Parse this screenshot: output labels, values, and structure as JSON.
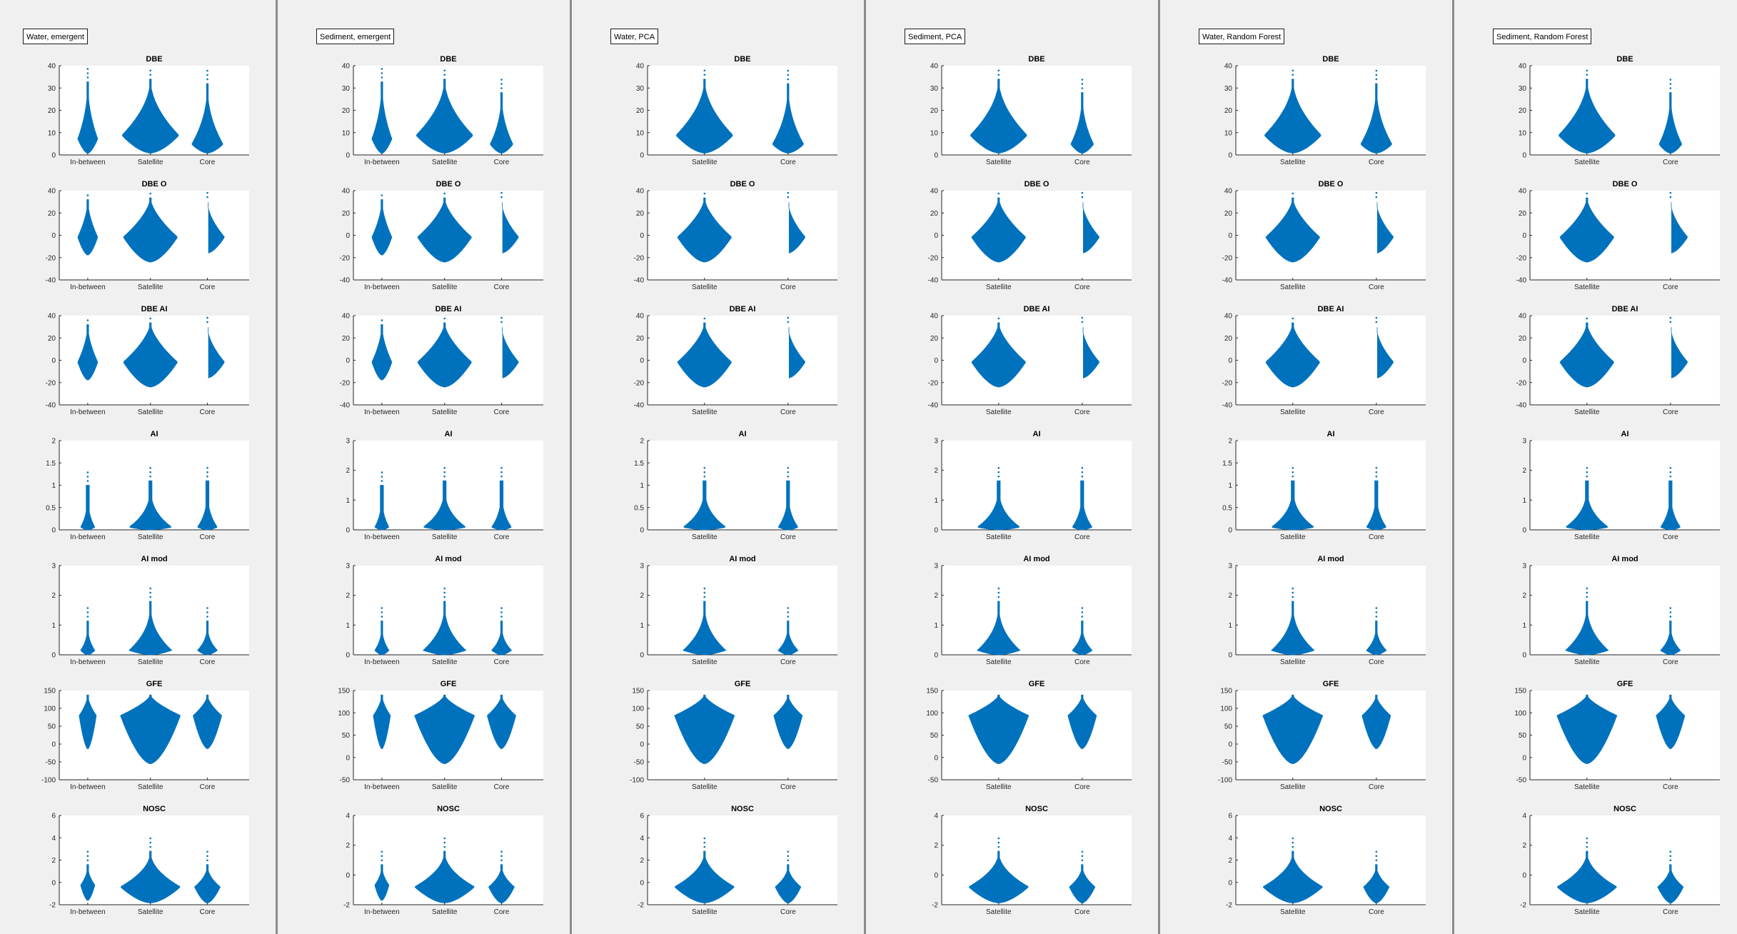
{
  "colors": {
    "violin": "#0072BD",
    "axes": "#262626",
    "panel_bg": "#f0f0f0",
    "axis_bg": "#ffffff"
  },
  "panels": [
    {
      "legend": "Water, emergent",
      "groups": [
        "In-between",
        "Satellite",
        "Core"
      ]
    },
    {
      "legend": "Sediment, emergent",
      "groups": [
        "In-between",
        "Satellite",
        "Core"
      ]
    },
    {
      "legend": "Water, PCA",
      "groups": [
        "Satellite",
        "Core"
      ]
    },
    {
      "legend": "Sediment, PCA",
      "groups": [
        "Satellite",
        "Core"
      ]
    },
    {
      "legend": "Water, Random Forest",
      "groups": [
        "Satellite",
        "Core"
      ]
    },
    {
      "legend": "Sediment, Random Forest",
      "groups": [
        "Satellite",
        "Core"
      ]
    }
  ],
  "chart_data": [
    {
      "type": "violin",
      "metric": "DBE",
      "title": "DBE",
      "ylim": [
        0,
        40
      ],
      "yticks_by_panel": [
        [
          0,
          10,
          20,
          30,
          40
        ],
        [
          0,
          10,
          20,
          30,
          40
        ],
        [
          0,
          10,
          20,
          30,
          40
        ],
        [
          0,
          10,
          20,
          30,
          40
        ],
        [
          0,
          10,
          20,
          30,
          40
        ],
        [
          0,
          10,
          20,
          30,
          40
        ]
      ]
    },
    {
      "type": "violin",
      "metric": "DBE O",
      "title": "DBE O",
      "ylim": [
        -40,
        40
      ],
      "yticks_by_panel": [
        [
          -40,
          -20,
          0,
          20,
          40
        ],
        [
          -40,
          -20,
          0,
          20,
          40
        ],
        [
          -40,
          -20,
          0,
          20,
          40
        ],
        [
          -40,
          -20,
          0,
          20,
          40
        ],
        [
          -40,
          -20,
          0,
          20,
          40
        ],
        [
          -40,
          -20,
          0,
          20,
          40
        ]
      ]
    },
    {
      "type": "violin",
      "metric": "DBE AI",
      "title": "DBE AI",
      "ylim": [
        -40,
        40
      ],
      "yticks_by_panel": [
        [
          -40,
          -20,
          0,
          20,
          40
        ],
        [
          -40,
          -20,
          0,
          20,
          40
        ],
        [
          -40,
          -20,
          0,
          20,
          40
        ],
        [
          -40,
          -20,
          0,
          20,
          40
        ],
        [
          -40,
          -20,
          0,
          20,
          40
        ],
        [
          -40,
          -20,
          0,
          20,
          40
        ]
      ]
    },
    {
      "type": "violin",
      "metric": "AI",
      "title": "AI",
      "yticks_by_panel": [
        [
          0,
          0.5,
          1,
          1.5,
          2
        ],
        [
          0,
          1,
          2,
          3
        ],
        [
          0,
          0.5,
          1,
          1.5,
          2
        ],
        [
          0,
          1,
          2,
          3
        ],
        [
          0,
          0.5,
          1,
          1.5,
          2
        ],
        [
          0,
          1,
          2,
          3
        ]
      ]
    },
    {
      "type": "violin",
      "metric": "AI mod",
      "title": "AI mod",
      "ylim": [
        0,
        3
      ],
      "yticks_by_panel": [
        [
          0,
          1,
          2,
          3
        ],
        [
          0,
          1,
          2,
          3
        ],
        [
          0,
          1,
          2,
          3
        ],
        [
          0,
          1,
          2,
          3
        ],
        [
          0,
          1,
          2,
          3
        ],
        [
          0,
          1,
          2,
          3
        ]
      ]
    },
    {
      "type": "violin",
      "metric": "GFE",
      "title": "GFE",
      "yticks_by_panel": [
        [
          -100,
          -50,
          0,
          50,
          100,
          150
        ],
        [
          -50,
          0,
          50,
          100,
          150
        ],
        [
          -100,
          -50,
          0,
          50,
          100,
          150
        ],
        [
          -50,
          0,
          50,
          100,
          150
        ],
        [
          -100,
          -50,
          0,
          50,
          100,
          150
        ],
        [
          -50,
          0,
          50,
          100,
          150
        ]
      ]
    },
    {
      "type": "violin",
      "metric": "NOSC",
      "title": "NOSC",
      "yticks_by_panel": [
        [
          -2,
          0,
          2,
          4,
          6
        ],
        [
          -2,
          0,
          2,
          4
        ],
        [
          -2,
          0,
          2,
          4,
          6
        ],
        [
          -2,
          0,
          2,
          4
        ],
        [
          -2,
          0,
          2,
          4,
          6
        ],
        [
          -2,
          0,
          2,
          4
        ]
      ]
    }
  ]
}
